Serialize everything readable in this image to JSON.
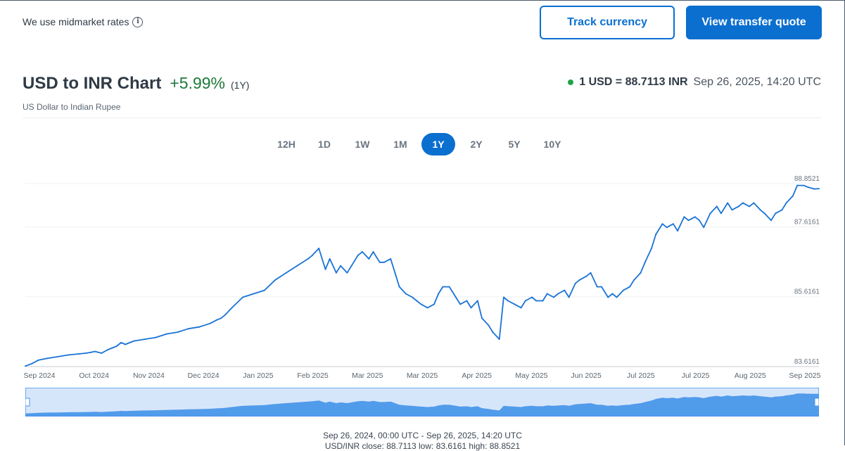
{
  "header": {
    "note": "We use midmarket rates",
    "track_button": "Track currency",
    "quote_button": "View transfer quote"
  },
  "title": {
    "text": "USD to INR Chart",
    "change": "+5.99%",
    "period": "(1Y)",
    "subtitle": "US Dollar to Indian Rupee",
    "rate": "1 USD = 88.7113 INR",
    "timestamp": "Sep 26, 2025, 14:20 UTC"
  },
  "tabs": [
    {
      "label": "12H",
      "active": false
    },
    {
      "label": "1D",
      "active": false
    },
    {
      "label": "1W",
      "active": false
    },
    {
      "label": "1M",
      "active": false
    },
    {
      "label": "1Y",
      "active": true
    },
    {
      "label": "2Y",
      "active": false
    },
    {
      "label": "5Y",
      "active": false
    },
    {
      "label": "10Y",
      "active": false
    }
  ],
  "footer": {
    "range": "Sep 26, 2024, 00:00 UTC - Sep 26, 2025, 14:20 UTC",
    "stats": "USD/INR close: 88.7113 low: 83.6161 high: 88.8521"
  },
  "colors": {
    "accent": "#0b6fcf",
    "positive": "#1d7a3a",
    "line": "#1a73d6",
    "nav_fill": "#4a97ea"
  },
  "chart_data": {
    "type": "line",
    "ylim": [
      83.6161,
      88.8521
    ],
    "y_ticks": [
      "83.6161",
      "85.6161",
      "87.6161",
      "88.8521"
    ],
    "x_ticks": [
      "Sep 2024",
      "Oct 2024",
      "Nov 2024",
      "Dec 2024",
      "Jan 2025",
      "Feb 2025",
      "Mar 2025",
      "Mar 2025",
      "Apr 2025",
      "May 2025",
      "Jun 2025",
      "Jul 2025",
      "Jul 2025",
      "Aug 2025",
      "Sep 2025"
    ],
    "series": [
      {
        "x": [
          0,
          3,
          6,
          10,
          15,
          20,
          25,
          28,
          30,
          32,
          35,
          38,
          40,
          42,
          44,
          46,
          48,
          50,
          55,
          60,
          65,
          70,
          75,
          80,
          85,
          88,
          90,
          92,
          95,
          100,
          105,
          110,
          115,
          120,
          125,
          130,
          132,
          135,
          138,
          140,
          143,
          145,
          148,
          150,
          153,
          155,
          158,
          160,
          163,
          165,
          168,
          170,
          172,
          175,
          178,
          180,
          182,
          185,
          188,
          190,
          192,
          195,
          198,
          200,
          203,
          205,
          208,
          210,
          213,
          215,
          218,
          220,
          222,
          225,
          228,
          230,
          233,
          235,
          238,
          240,
          243,
          245,
          248,
          250,
          253,
          255,
          258,
          260,
          263,
          265,
          268,
          270,
          272,
          275,
          278,
          280,
          283,
          285,
          288,
          290,
          293,
          295,
          298,
          300,
          303,
          305,
          308,
          310,
          312,
          315,
          318,
          320,
          323,
          325,
          328,
          330,
          333,
          335,
          338,
          340,
          343,
          345,
          348,
          350,
          353,
          355,
          358,
          360,
          363,
          365
        ],
        "values": [
          83.63,
          83.7,
          83.8,
          83.85,
          83.9,
          83.95,
          83.98,
          84.0,
          84.02,
          84.05,
          84.0,
          84.1,
          84.15,
          84.2,
          84.3,
          84.25,
          84.3,
          84.35,
          84.4,
          84.45,
          84.55,
          84.6,
          84.7,
          84.75,
          84.85,
          84.95,
          85.0,
          85.1,
          85.3,
          85.6,
          85.7,
          85.8,
          86.1,
          86.3,
          86.5,
          86.7,
          86.8,
          87.0,
          86.4,
          86.7,
          86.3,
          86.5,
          86.3,
          86.5,
          86.8,
          86.9,
          86.7,
          86.9,
          86.6,
          86.6,
          86.7,
          86.3,
          85.9,
          85.7,
          85.6,
          85.5,
          85.4,
          85.3,
          85.4,
          85.7,
          85.9,
          85.9,
          85.6,
          85.4,
          85.5,
          85.3,
          85.5,
          85.0,
          84.8,
          84.6,
          84.4,
          85.6,
          85.5,
          85.4,
          85.3,
          85.5,
          85.6,
          85.5,
          85.5,
          85.7,
          85.6,
          85.7,
          85.8,
          85.6,
          86.0,
          86.1,
          86.2,
          86.3,
          85.9,
          85.9,
          85.6,
          85.7,
          85.6,
          85.8,
          85.9,
          86.1,
          86.3,
          86.6,
          87.0,
          87.4,
          87.7,
          87.6,
          87.7,
          87.5,
          87.9,
          87.8,
          87.9,
          87.8,
          87.6,
          88.0,
          88.2,
          88.0,
          88.3,
          88.1,
          88.2,
          88.3,
          88.2,
          88.3,
          88.1,
          88.0,
          87.8,
          88.0,
          88.1,
          88.3,
          88.5,
          88.8,
          88.8,
          88.75,
          88.7,
          88.71
        ]
      }
    ]
  }
}
